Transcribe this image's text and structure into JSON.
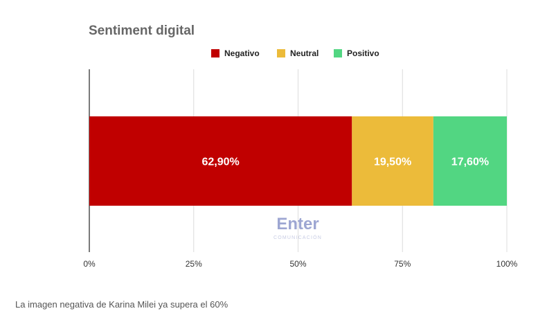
{
  "chart_data": {
    "type": "bar",
    "orientation": "horizontal-stacked",
    "title": "Sentiment digital",
    "xlim": [
      0,
      100
    ],
    "x_ticks": [
      "0%",
      "25%",
      "50%",
      "75%",
      "100%"
    ],
    "grid": true,
    "legend_position": "top-right",
    "series": [
      {
        "name": "Negativo",
        "value": 62.9,
        "label": "62,90%",
        "color": "#c00000"
      },
      {
        "name": "Neutral",
        "value": 19.5,
        "label": "19,50%",
        "color": "#ecbb3a"
      },
      {
        "name": "Positivo",
        "value": 17.6,
        "label": "17,60%",
        "color": "#52d682"
      }
    ]
  },
  "watermark": {
    "brand": "Enter",
    "tagline": "COMUNICACIÓN",
    "color": "#7d89c4"
  },
  "caption": "La imagen negativa de Karina Milei ya supera el 60%"
}
